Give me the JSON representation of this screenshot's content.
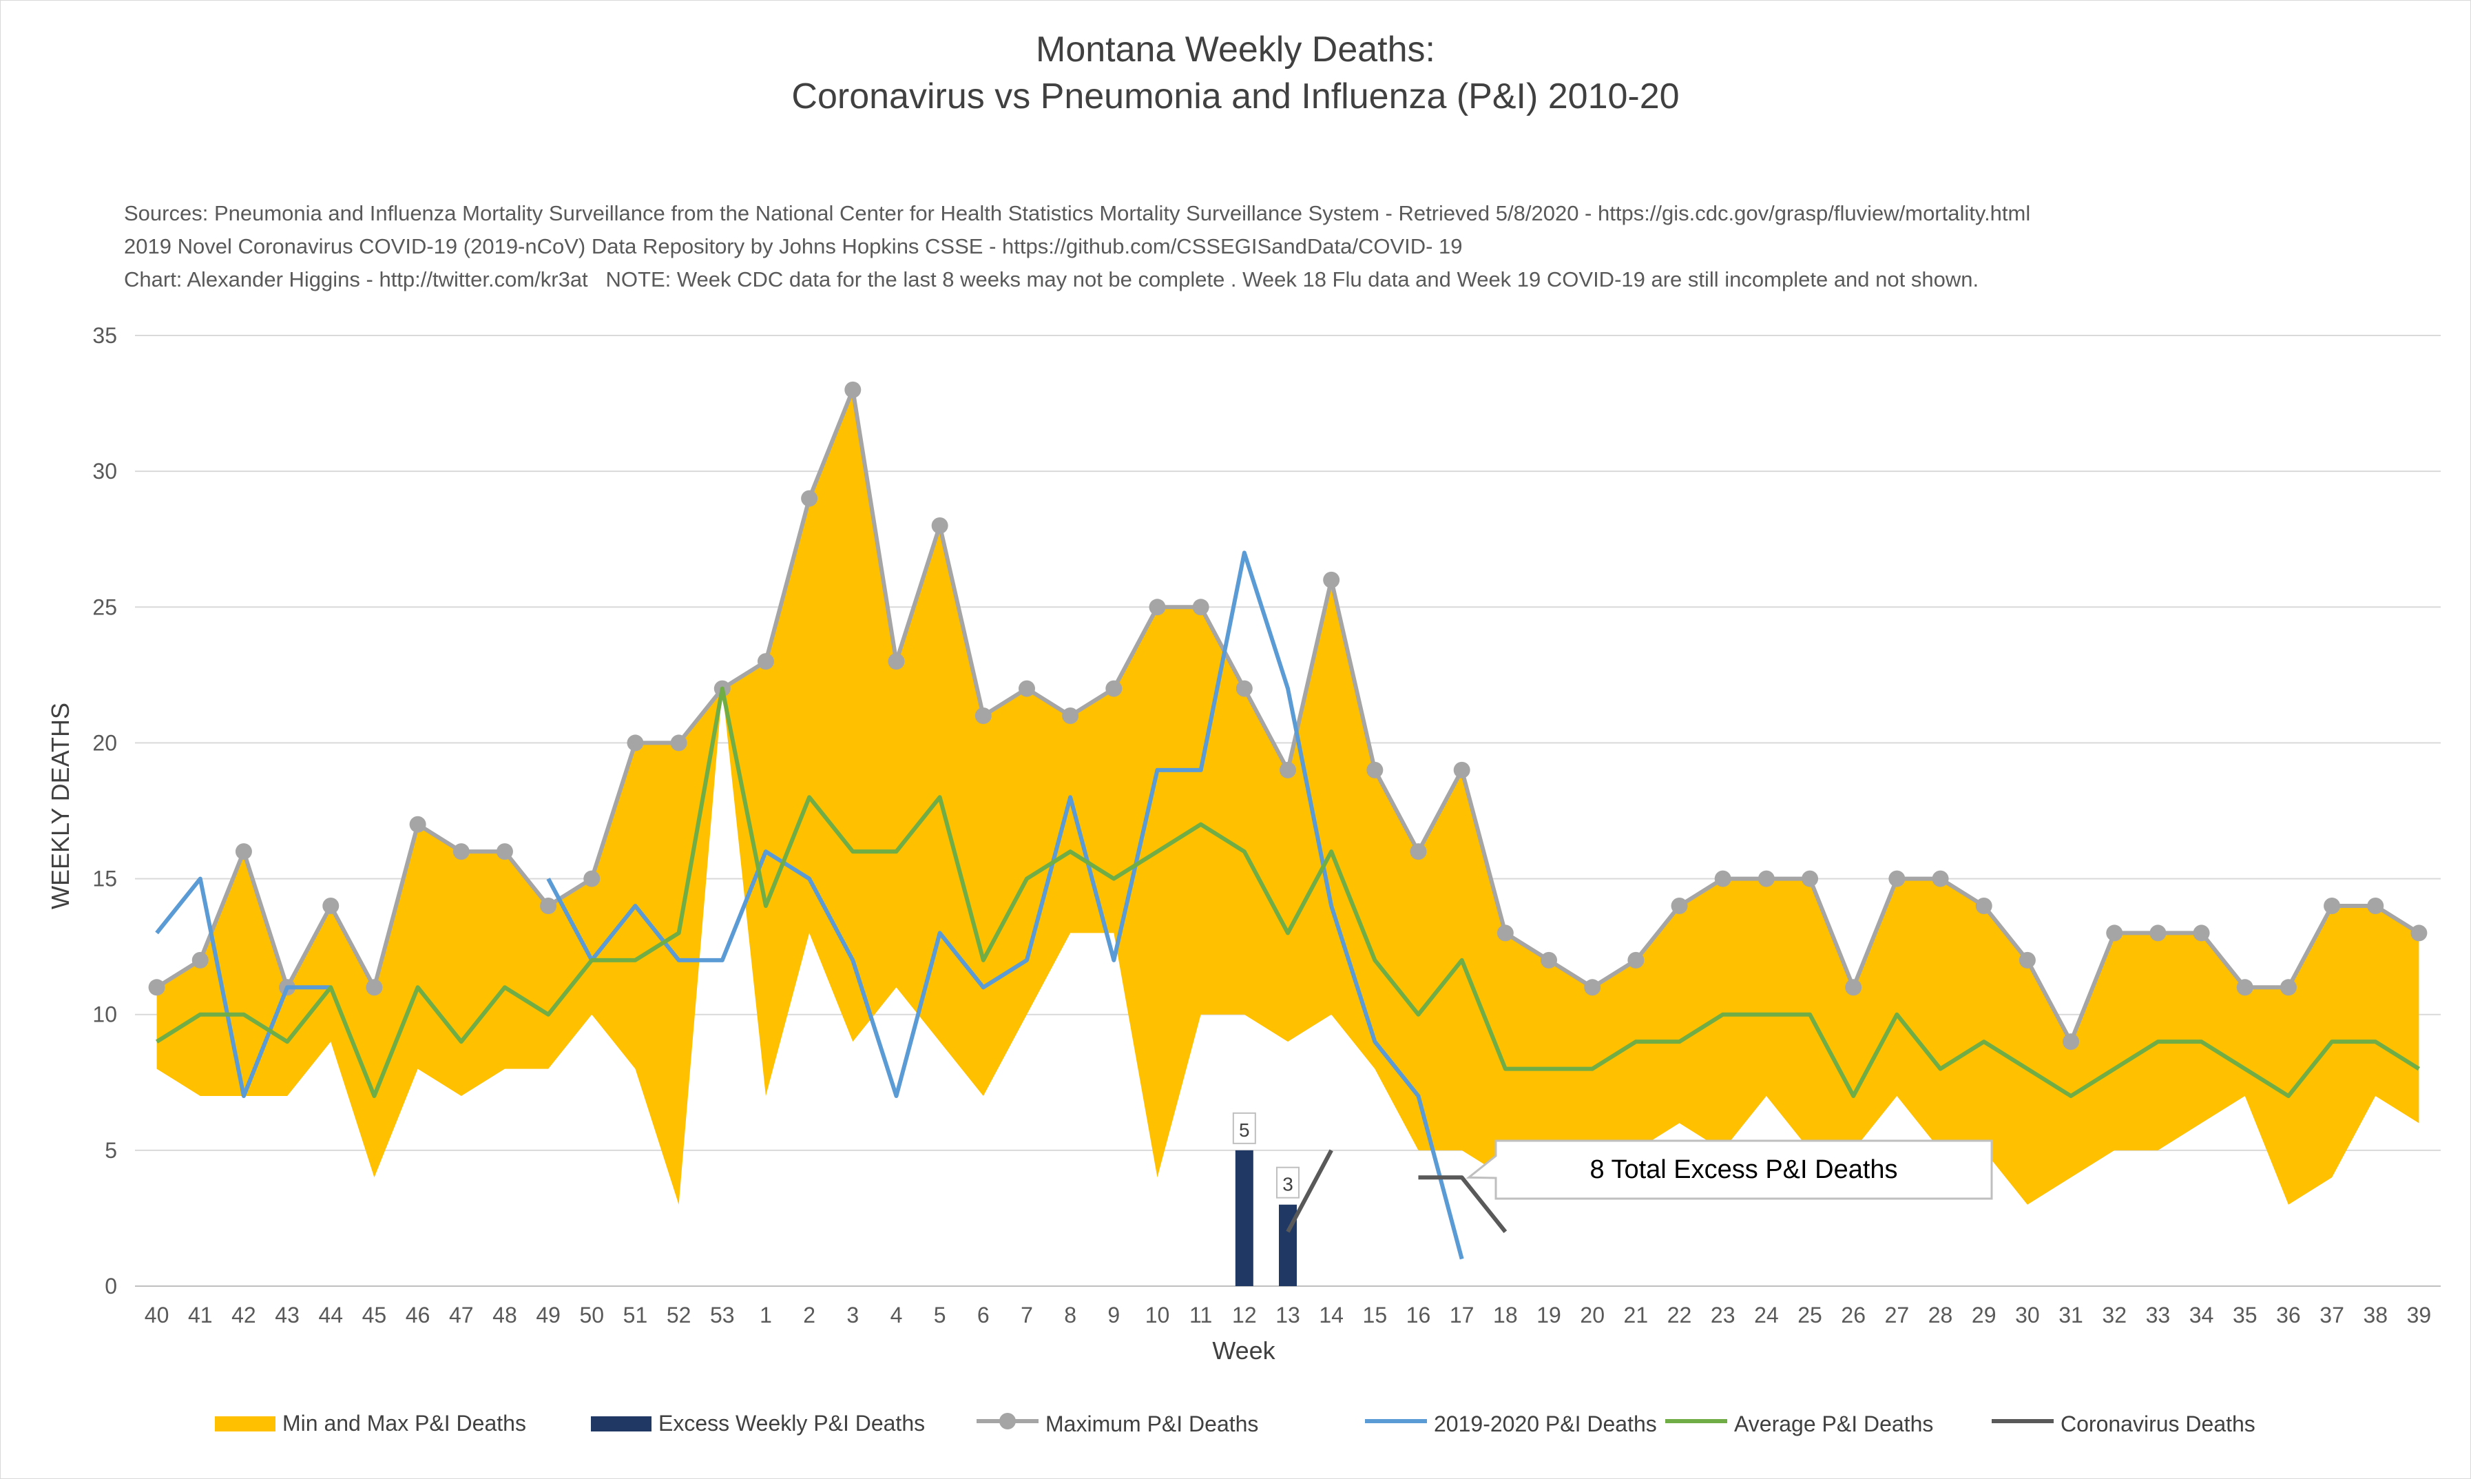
{
  "chart_data": {
    "type": "line",
    "title": "Montana Weekly Deaths:",
    "subtitle": "Coronavirus vs Pneumonia and Influenza (P&I) 2010-20",
    "sources": [
      "Sources: Pneumonia and Influenza Mortality Surveillance from the National Center for Health Statistics Mortality Surveillance System - Retrieved 5/8/2020 - https://gis.cdc.gov/grasp/fluview/mortality.html",
      "2019 Novel Coronavirus COVID-19 (2019-nCoV) Data Repository by Johns Hopkins CSSE - https://github.com/CSSEGISandData/COVID- 19",
      "Chart: Alexander Higgins - http://twitter.com/kr3at   NOTE: Week CDC data for the last 8 weeks may not be complete . Week 18 Flu data and Week 19 COVID-19 are still incomplete and not shown."
    ],
    "xlabel": "Week",
    "ylabel": "WEEKLY DEATHS",
    "ylim": [
      0,
      35
    ],
    "yticks": [
      0,
      5,
      10,
      15,
      20,
      25,
      30,
      35
    ],
    "grid": true,
    "legend_position": "bottom",
    "categories": [
      "40",
      "41",
      "42",
      "43",
      "44",
      "45",
      "46",
      "47",
      "48",
      "49",
      "50",
      "51",
      "52",
      "53",
      "1",
      "2",
      "3",
      "4",
      "5",
      "6",
      "7",
      "8",
      "9",
      "10",
      "11",
      "12",
      "13",
      "14",
      "15",
      "16",
      "17",
      "18",
      "19",
      "20",
      "21",
      "22",
      "23",
      "24",
      "25",
      "26",
      "27",
      "28",
      "29",
      "30",
      "31",
      "32",
      "33",
      "34",
      "35",
      "36",
      "37",
      "38",
      "39"
    ],
    "series": [
      {
        "name": "Min and Max P&I Deaths",
        "kind": "area",
        "color": "#ffc000",
        "min": [
          8,
          7,
          7,
          7,
          9,
          4,
          8,
          7,
          8,
          8,
          10,
          8,
          3,
          22,
          7,
          13,
          9,
          11,
          9,
          7,
          10,
          13,
          13,
          4,
          10,
          10,
          9,
          10,
          8,
          5,
          5,
          4,
          4,
          5,
          5,
          6,
          5,
          7,
          5,
          5,
          7,
          5,
          5,
          3,
          4,
          5,
          5,
          6,
          7,
          3,
          4,
          7,
          6
        ],
        "max": [
          11,
          12,
          16,
          11,
          14,
          11,
          17,
          16,
          16,
          14,
          15,
          20,
          20,
          22,
          23,
          29,
          33,
          23,
          28,
          21,
          22,
          21,
          22,
          25,
          25,
          22,
          19,
          26,
          19,
          16,
          19,
          13,
          12,
          11,
          12,
          14,
          15,
          15,
          15,
          11,
          15,
          15,
          14,
          12,
          9,
          13,
          13,
          13,
          11,
          11,
          14,
          14,
          13
        ]
      },
      {
        "name": "Excess Weekly P&I Deaths",
        "kind": "bar",
        "color": "#1f3864",
        "points": [
          {
            "x": "12",
            "y": 5
          },
          {
            "x": "13",
            "y": 3
          }
        ]
      },
      {
        "name": "Maximum P&I Deaths",
        "kind": "line-marker",
        "color": "#a5a5a5",
        "values": [
          11,
          12,
          16,
          11,
          14,
          11,
          17,
          16,
          16,
          14,
          15,
          20,
          20,
          22,
          23,
          29,
          33,
          23,
          28,
          21,
          22,
          21,
          22,
          25,
          25,
          22,
          19,
          26,
          19,
          16,
          19,
          13,
          12,
          11,
          12,
          14,
          15,
          15,
          15,
          11,
          15,
          15,
          14,
          12,
          9,
          13,
          13,
          13,
          11,
          11,
          14,
          14,
          13
        ]
      },
      {
        "name": "2019-2020 P&I Deaths",
        "kind": "line",
        "color": "#5b9bd5",
        "values": [
          13,
          15,
          7,
          11,
          11,
          null,
          null,
          null,
          null,
          15,
          12,
          14,
          12,
          12,
          16,
          15,
          12,
          7,
          13,
          11,
          12,
          18,
          12,
          19,
          19,
          27,
          22,
          14,
          9,
          7,
          1,
          null,
          null,
          null,
          null,
          null,
          null,
          null,
          null,
          null,
          null,
          null,
          null,
          null,
          null,
          null,
          null,
          null,
          null,
          null,
          null,
          null,
          null
        ]
      },
      {
        "name": "Average P&I Deaths",
        "kind": "line",
        "color": "#70ad47",
        "values": [
          9,
          10,
          10,
          9,
          11,
          7,
          11,
          9,
          11,
          10,
          12,
          12,
          13,
          22,
          14,
          18,
          16,
          16,
          18,
          12,
          15,
          16,
          15,
          16,
          17,
          16,
          13,
          16,
          12,
          10,
          12,
          8,
          8,
          8,
          9,
          9,
          10,
          10,
          10,
          7,
          10,
          8,
          9,
          8,
          7,
          8,
          9,
          9,
          8,
          7,
          9,
          9,
          8
        ]
      },
      {
        "name": "Coronavirus Deaths",
        "kind": "line",
        "color": "#595959",
        "segments": [
          [
            {
              "x": "13",
              "y": 2
            },
            {
              "x": "14",
              "y": 5
            }
          ],
          [
            {
              "x": "16",
              "y": 4
            },
            {
              "x": "17",
              "y": 4
            },
            {
              "x": "18",
              "y": 2
            }
          ]
        ]
      }
    ],
    "data_labels": [
      {
        "x": "12",
        "y": 5,
        "text": "5"
      },
      {
        "x": "13",
        "y": 3,
        "text": "3"
      }
    ],
    "callout": {
      "text": "8 Total Excess P&I Deaths"
    }
  }
}
